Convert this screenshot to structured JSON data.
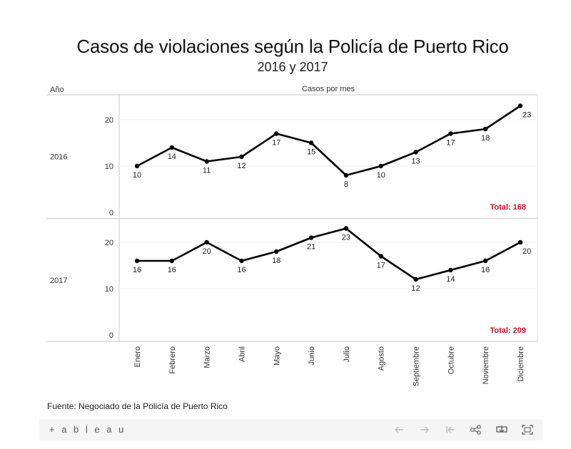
{
  "title": "Casos de violaciones según la Policía de Puerto Rico",
  "subtitle": "2016 y 2017",
  "row_header": "Año",
  "column_header": "Casos por mes",
  "source": "Fuente: Negociado de la Policía de Puerto Rico",
  "toolbar": {
    "logo": "+ a b l e a u",
    "buttons": [
      "undo-icon",
      "redo-icon",
      "revert-icon",
      "share-icon",
      "download-icon",
      "fullscreen-icon"
    ]
  },
  "chart_data": {
    "type": "line",
    "categories": [
      "Enero",
      "Febrero",
      "Marzo",
      "Abril",
      "Mayo",
      "Junio",
      "Julio",
      "Agosto",
      "Septiembre",
      "Octubre",
      "Noviembre",
      "Diciembre"
    ],
    "series": [
      {
        "name": "2016",
        "values": [
          10,
          14,
          11,
          12,
          17,
          15,
          8,
          10,
          13,
          17,
          18,
          23
        ],
        "total_label": "Total: 168"
      },
      {
        "name": "2017",
        "values": [
          16,
          16,
          20,
          16,
          18,
          21,
          23,
          17,
          12,
          14,
          16,
          20
        ],
        "total_label": "Total: 209"
      }
    ],
    "yticks": [
      0,
      10,
      20
    ],
    "ylim": [
      0,
      25
    ],
    "colors": {
      "line": "#000000",
      "total": "#c8102e",
      "grid": "#e6e6e6",
      "axis": "#c8c8c8"
    }
  }
}
